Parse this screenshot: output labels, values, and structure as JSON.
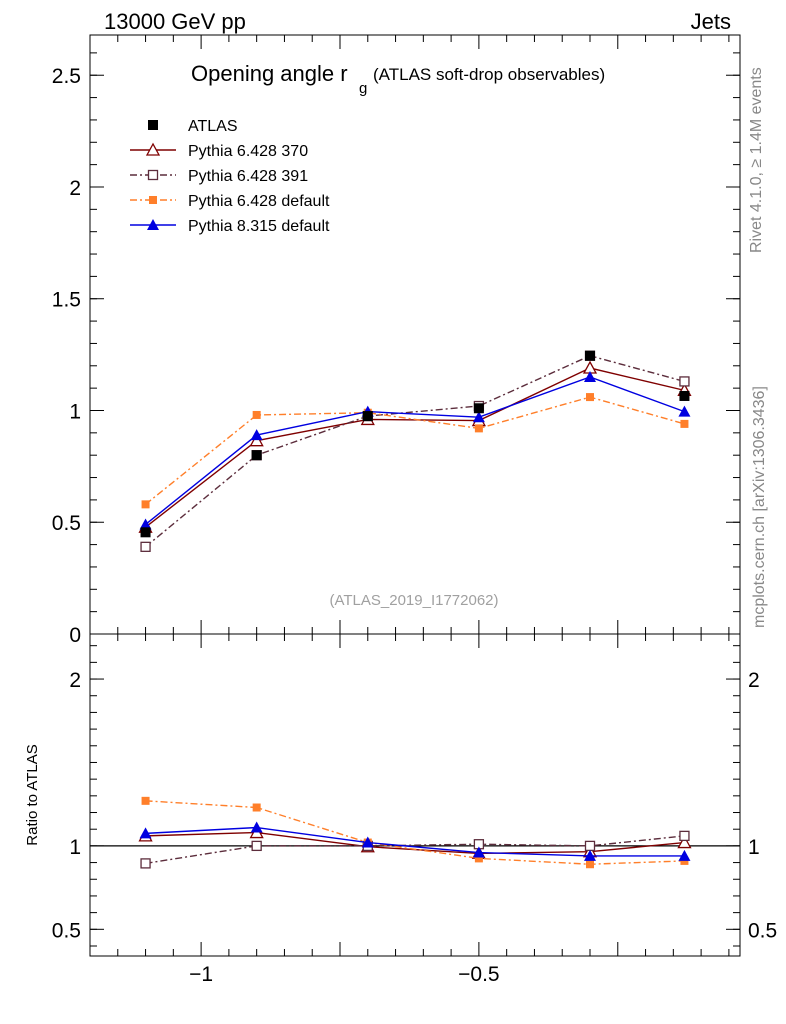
{
  "header": {
    "left": "13000 GeV pp",
    "right": "Jets"
  },
  "side_labels": {
    "rivet": "Rivet 4.1.0, ≥ 1.4M events",
    "mcplots": "mcplots.cern.ch [arXiv:1306.3436]"
  },
  "colors": {
    "atlas": "#000000",
    "py370": "#7f0000",
    "py391": "#5c2d3c",
    "py_default": "#ff7f2a",
    "py8": "#0000e0",
    "watermark": "#a0a0a0"
  },
  "chart_data": [
    {
      "type": "line",
      "title_main": "Opening angle r",
      "title_sub": "g",
      "title_rest": "(ATLAS soft-drop observables)",
      "watermark": "(ATLAS_2019_I1772062)",
      "ylim": [
        0,
        2.68
      ],
      "xlim": [
        -1.2,
        -0.03
      ],
      "ylabel": "",
      "yticks": [
        {
          "v": 0,
          "label": "0"
        },
        {
          "v": 0.5,
          "label": "0.5"
        },
        {
          "v": 1,
          "label": "1"
        },
        {
          "v": 1.5,
          "label": "1.5"
        },
        {
          "v": 2,
          "label": "2"
        },
        {
          "v": 2.5,
          "label": "2.5"
        }
      ],
      "x": [
        -1.1,
        -0.9,
        -0.7,
        -0.5,
        -0.3,
        -0.13
      ],
      "series": [
        {
          "name": "ATLAS",
          "key": "atlas",
          "marker": "filled-square",
          "line": "none",
          "values": [
            0.455,
            0.8,
            0.975,
            1.01,
            1.245,
            1.065
          ]
        },
        {
          "name": "Pythia 6.428 370",
          "key": "py370",
          "marker": "open-triangle",
          "line": "solid",
          "values": [
            0.478,
            0.865,
            0.96,
            0.955,
            1.19,
            1.09
          ]
        },
        {
          "name": "Pythia 6.428 391",
          "key": "py391",
          "marker": "open-square",
          "line": "dashdot",
          "values": [
            0.39,
            0.8,
            0.975,
            1.02,
            1.245,
            1.13
          ]
        },
        {
          "name": "Pythia 6.428 default",
          "key": "py_default",
          "marker": "filled-square-small",
          "line": "dashdot",
          "values": [
            0.58,
            0.98,
            0.99,
            0.92,
            1.06,
            0.94
          ]
        },
        {
          "name": "Pythia 8.315 default",
          "key": "py8",
          "marker": "filled-triangle",
          "line": "solid",
          "values": [
            0.49,
            0.89,
            0.995,
            0.97,
            1.15,
            0.995
          ]
        }
      ]
    },
    {
      "type": "line",
      "title": "",
      "ylabel": "Ratio to ATLAS",
      "ylim": [
        0.34,
        2.27
      ],
      "xlim": [
        -1.2,
        -0.03
      ],
      "yticks": [
        {
          "v": 0.5,
          "label": "0.5"
        },
        {
          "v": 1,
          "label": "1"
        },
        {
          "v": 2,
          "label": "2"
        }
      ],
      "xticks": [
        {
          "v": -1,
          "label": "−1"
        },
        {
          "v": -0.5,
          "label": "−0.5"
        }
      ],
      "reference": 1,
      "x": [
        -1.1,
        -0.9,
        -0.7,
        -0.5,
        -0.3,
        -0.13
      ],
      "series": [
        {
          "name": "Pythia 6.428 370",
          "key": "py370",
          "marker": "open-triangle",
          "line": "solid",
          "values": [
            1.06,
            1.08,
            0.995,
            0.955,
            0.965,
            1.02
          ]
        },
        {
          "name": "Pythia 6.428 391",
          "key": "py391",
          "marker": "open-square",
          "line": "dashdot",
          "values": [
            0.895,
            1.0,
            1.0,
            1.01,
            1.0,
            1.06
          ]
        },
        {
          "name": "Pythia 6.428 default",
          "key": "py_default",
          "marker": "filled-square-small",
          "line": "dashdot",
          "values": [
            1.27,
            1.23,
            1.02,
            0.925,
            0.89,
            0.91
          ]
        },
        {
          "name": "Pythia 8.315 default",
          "key": "py8",
          "marker": "filled-triangle",
          "line": "solid",
          "values": [
            1.075,
            1.11,
            1.02,
            0.96,
            0.94,
            0.94
          ]
        }
      ]
    }
  ]
}
